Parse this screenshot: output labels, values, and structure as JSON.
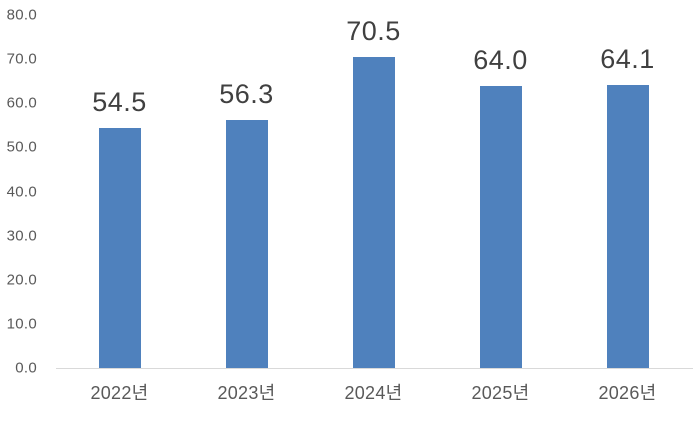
{
  "chart_data": {
    "type": "bar",
    "title": "",
    "xlabel": "",
    "ylabel": "",
    "categories": [
      "2022년",
      "2023년",
      "2024년",
      "2025년",
      "2026년"
    ],
    "values": [
      54.5,
      56.3,
      70.5,
      64.0,
      64.1
    ],
    "value_labels": [
      "54.5",
      "56.3",
      "70.5",
      "64.0",
      "64.1"
    ],
    "ylim": [
      0,
      80
    ],
    "ytick_step": 10,
    "yticks": [
      "80.0",
      "70.0",
      "60.0",
      "50.0",
      "40.0",
      "30.0",
      "20.0",
      "10.0",
      "0.0"
    ],
    "grid": false,
    "legend_position": "none",
    "colors": {
      "bar": "#4f81bd",
      "value_label": "#404040",
      "axis_text": "#595959",
      "axis_line": "#d9d9d9",
      "background": "#ffffff"
    }
  }
}
